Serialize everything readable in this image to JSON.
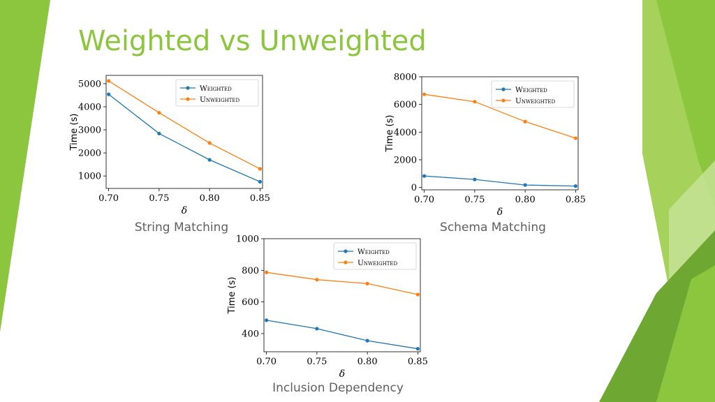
{
  "slide": {
    "title": "Weighted vs Unweighted",
    "accent": "#8cc63e",
    "captions": [
      "String Matching",
      "Schema Matching",
      "Inclusion Dependency"
    ]
  },
  "chart_data": [
    {
      "type": "line",
      "xlabel": "δ",
      "ylabel": "Time (s)",
      "x": [
        0.7,
        0.75,
        0.8,
        0.85
      ],
      "xticks": [
        "0.70",
        "0.75",
        "0.80",
        "0.85"
      ],
      "yticks": [
        1000,
        2000,
        3000,
        4000,
        5000
      ],
      "xlim": [
        0.6975,
        0.8525
      ],
      "ylim": [
        460,
        5360
      ],
      "legend": "top-right",
      "series": [
        {
          "name": "Weighted",
          "color": "#1f77b4",
          "values": [
            4540,
            2840,
            1700,
            750
          ]
        },
        {
          "name": "Unweighted",
          "color": "#ff7f0e",
          "values": [
            5120,
            3740,
            2430,
            1310
          ]
        }
      ]
    },
    {
      "type": "line",
      "xlabel": "δ",
      "ylabel": "Time (s)",
      "x": [
        0.7,
        0.75,
        0.8,
        0.85
      ],
      "xticks": [
        "0.70",
        "0.75",
        "0.80",
        "0.85"
      ],
      "yticks": [
        0,
        2000,
        4000,
        6000,
        8000
      ],
      "xlim": [
        0.6975,
        0.8525
      ],
      "ylim": [
        -170,
        8000
      ],
      "legend": "top-right",
      "series": [
        {
          "name": "Weighted",
          "color": "#1f77b4",
          "values": [
            830,
            580,
            180,
            100
          ]
        },
        {
          "name": "Unweighted",
          "color": "#ff7f0e",
          "values": [
            6730,
            6200,
            4760,
            3560
          ]
        }
      ]
    },
    {
      "type": "line",
      "xlabel": "δ",
      "ylabel": "Time (s)",
      "x": [
        0.7,
        0.75,
        0.8,
        0.85
      ],
      "xticks": [
        "0.70",
        "0.75",
        "0.80",
        "0.85"
      ],
      "yticks": [
        400,
        600,
        800,
        1000
      ],
      "xlim": [
        0.6975,
        0.8525
      ],
      "ylim": [
        285,
        1000
      ],
      "legend": "top-right",
      "series": [
        {
          "name": "Weighted",
          "color": "#1f77b4",
          "values": [
            484,
            431,
            355,
            304
          ]
        },
        {
          "name": "Unweighted",
          "color": "#ff7f0e",
          "values": [
            787,
            741,
            716,
            647
          ]
        }
      ]
    }
  ]
}
